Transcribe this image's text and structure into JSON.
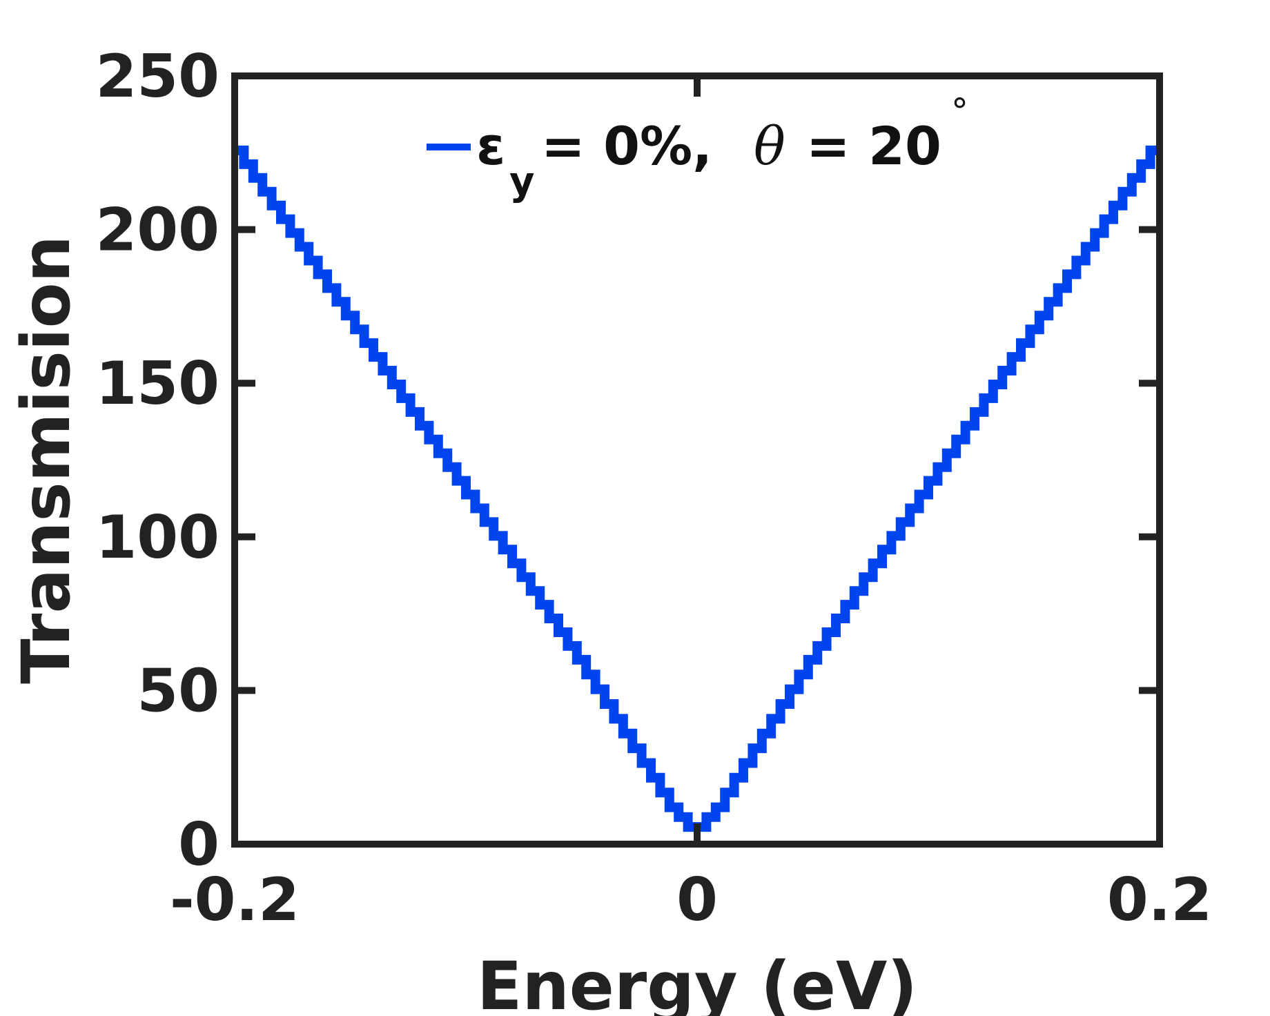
{
  "chart_data": {
    "type": "line",
    "xlabel": "Energy (eV)",
    "ylabel": "Transmision",
    "xlim": [
      -0.2,
      0.2
    ],
    "ylim": [
      0,
      250
    ],
    "xticks": [
      "-0.2",
      "0",
      "0.2"
    ],
    "yticks": [
      "0",
      "50",
      "100",
      "150",
      "200",
      "250"
    ],
    "grid": false,
    "legend_placement": "top-center",
    "series": [
      {
        "name": "ε_y = 0%, θ = 20°",
        "legend": {
          "epsilon": "ε",
          "subscript": "y",
          "mid": "= 0%,",
          "theta": "θ",
          "end": "= 20",
          "degree": "°"
        },
        "color": "#0044ee",
        "shape": "staircase",
        "x": [
          -0.2,
          -0.15,
          -0.1,
          -0.05,
          -0.01,
          0,
          0.01,
          0.05,
          0.1,
          0.15,
          0.2
        ],
        "y": [
          228,
          172,
          116,
          60,
          12,
          4,
          12,
          60,
          116,
          172,
          228
        ]
      }
    ]
  }
}
